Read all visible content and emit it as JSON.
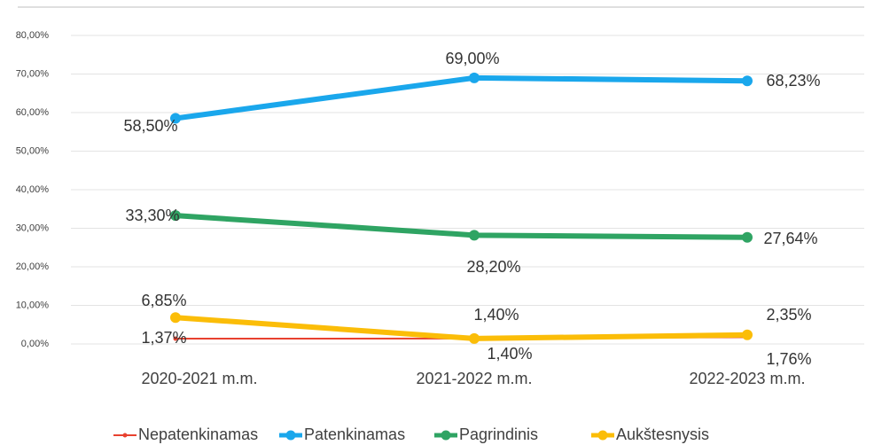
{
  "chart_data": {
    "type": "line",
    "categories": [
      "2020-2021 m.m.",
      "2021-2022 m.m.",
      "2022-2023 m.m."
    ],
    "series": [
      {
        "name": "Nepatenkinamas",
        "color": "#e8412f",
        "values": [
          1.37,
          1.4,
          1.76
        ],
        "value_labels": [
          "1,37%",
          "1,40%",
          "1,76%"
        ]
      },
      {
        "name": "Patenkinamas",
        "color": "#1aa7ec",
        "values": [
          58.5,
          69.0,
          68.23
        ],
        "value_labels": [
          "58,50%",
          "69,00%",
          "68,23%"
        ]
      },
      {
        "name": "Pagrindinis",
        "color": "#2fa463",
        "values": [
          33.3,
          28.2,
          27.64
        ],
        "value_labels": [
          "33,30%",
          "28,20%",
          "27,64%"
        ]
      },
      {
        "name": "Aukštesnysis",
        "color": "#fbbd08",
        "values": [
          6.85,
          1.4,
          2.35
        ],
        "value_labels": [
          "6,85%",
          "1,40%",
          "2,35%"
        ]
      }
    ],
    "ylim": [
      0,
      80
    ],
    "yticks": [
      {
        "value": 0,
        "label": "0,00%"
      },
      {
        "value": 10,
        "label": "10,00%"
      },
      {
        "value": 20,
        "label": "20,00%"
      },
      {
        "value": 30,
        "label": "30,00%"
      },
      {
        "value": 40,
        "label": "40,00%"
      },
      {
        "value": 50,
        "label": "50,00%"
      },
      {
        "value": 60,
        "label": "60,00%"
      },
      {
        "value": 70,
        "label": "70,00%"
      },
      {
        "value": 80,
        "label": "80,00%"
      }
    ],
    "grid": true
  }
}
